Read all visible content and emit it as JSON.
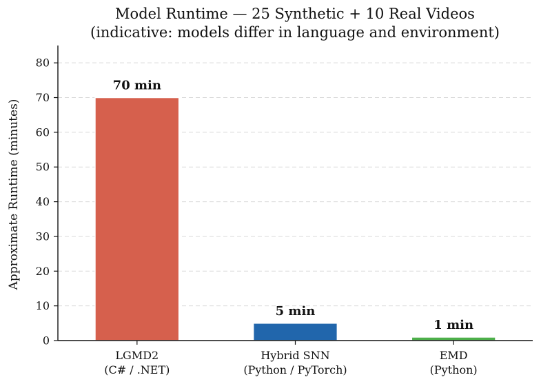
{
  "chart_data": {
    "type": "bar",
    "title": "Model Runtime — 25 Synthetic + 10 Real Videos",
    "subtitle": "(indicative: models differ in language and environment)",
    "xlabel": "",
    "ylabel": "Approximate Runtime (minutes)",
    "ylim": [
      0,
      85
    ],
    "yticks": [
      0,
      10,
      20,
      30,
      40,
      50,
      60,
      70,
      80
    ],
    "grid": "horizontal dashed",
    "categories": [
      {
        "name": "LGMD2",
        "detail": "(C# / .NET)"
      },
      {
        "name": "Hybrid SNN",
        "detail": "(Python / PyTorch)"
      },
      {
        "name": "EMD",
        "detail": "(Python)"
      }
    ],
    "values": [
      70,
      5,
      1
    ],
    "data_labels": [
      "70 min",
      "5 min",
      "1 min"
    ],
    "colors": [
      "#d6604d",
      "#2166ac",
      "#4daf4a"
    ]
  }
}
